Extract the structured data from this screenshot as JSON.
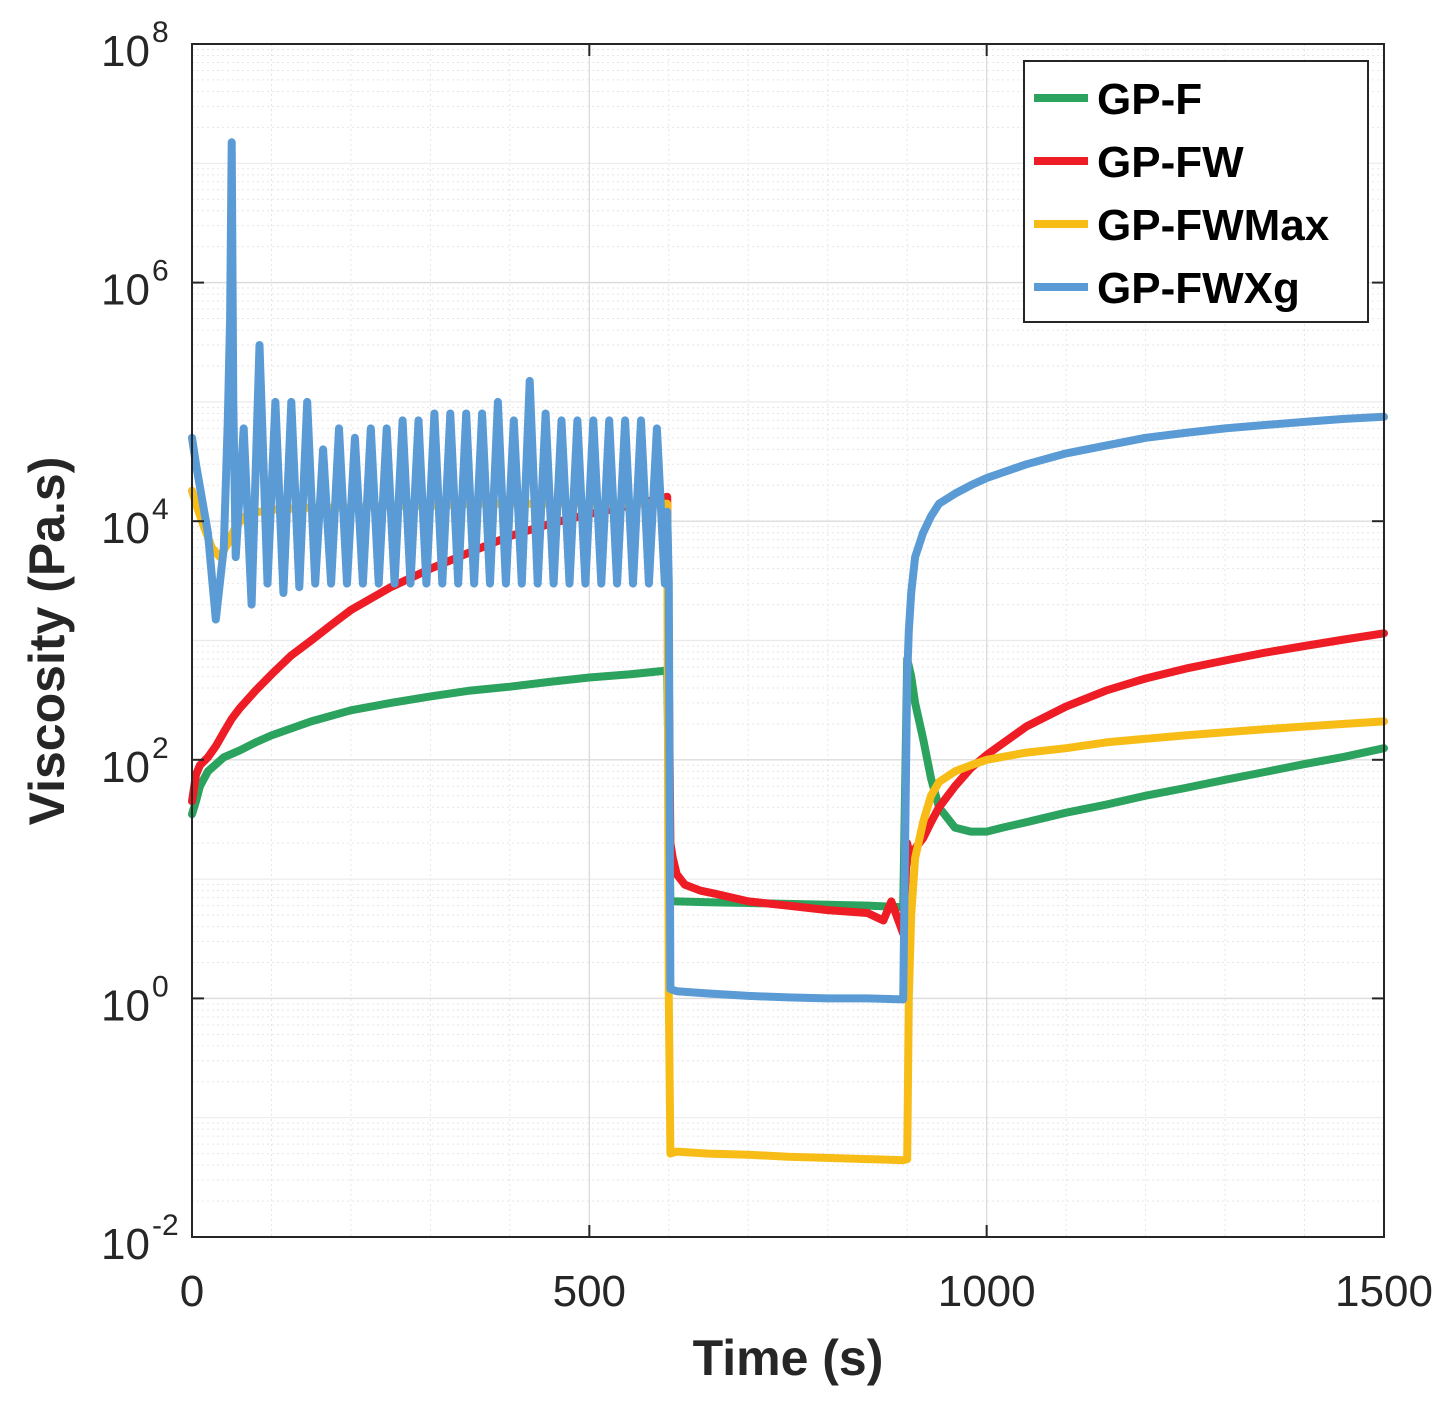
{
  "chart_data": {
    "type": "line",
    "title": "",
    "xlabel": "Time (s)",
    "ylabel": "Viscosity (Pa.s)",
    "xlim": [
      0,
      1500
    ],
    "ylim": [
      0.01,
      100000000
    ],
    "yscale": "log",
    "grid": true,
    "legend_position": "top-right",
    "x_ticks": [
      {
        "value": 0,
        "label": "0"
      },
      {
        "value": 500,
        "label": "500"
      },
      {
        "value": 1000,
        "label": "1000"
      },
      {
        "value": 1500,
        "label": "1500"
      }
    ],
    "y_ticks": [
      {
        "value": 0.01,
        "base": "10",
        "exp": "-2"
      },
      {
        "value": 1,
        "base": "10",
        "exp": "0"
      },
      {
        "value": 100,
        "base": "10",
        "exp": "2"
      },
      {
        "value": 10000,
        "base": "10",
        "exp": "4"
      },
      {
        "value": 1000000,
        "base": "10",
        "exp": "6"
      },
      {
        "value": 100000000,
        "base": "10",
        "exp": "8"
      }
    ],
    "series": [
      {
        "name": "GP-F",
        "color": "#2ca25f",
        "x": [
          0,
          5,
          10,
          20,
          40,
          60,
          80,
          100,
          150,
          200,
          250,
          300,
          350,
          400,
          450,
          500,
          550,
          598,
          602,
          610,
          650,
          700,
          750,
          800,
          850,
          895,
          900,
          905,
          910,
          920,
          930,
          940,
          960,
          980,
          1000,
          1020,
          1050,
          1100,
          1150,
          1200,
          1250,
          1300,
          1350,
          1400,
          1450,
          1500
        ],
        "values": [
          35,
          45,
          60,
          80,
          105,
          120,
          140,
          160,
          210,
          260,
          300,
          340,
          380,
          410,
          450,
          490,
          520,
          560,
          6.5,
          6.5,
          6.4,
          6.3,
          6.2,
          6.1,
          6.0,
          5.8,
          700,
          500,
          300,
          150,
          70,
          40,
          27,
          25,
          25,
          27,
          30,
          36,
          42,
          50,
          58,
          68,
          79,
          92,
          106,
          125
        ]
      },
      {
        "name": "GP-FW",
        "color": "#ee1c25",
        "x": [
          0,
          5,
          10,
          20,
          30,
          40,
          50,
          60,
          80,
          100,
          125,
          150,
          175,
          200,
          250,
          300,
          350,
          400,
          450,
          500,
          550,
          598,
          602,
          605,
          610,
          620,
          640,
          660,
          700,
          750,
          800,
          850,
          870,
          880,
          895,
          900,
          905,
          910,
          920,
          930,
          940,
          960,
          980,
          1000,
          1050,
          1100,
          1150,
          1200,
          1250,
          1300,
          1350,
          1400,
          1450,
          1500
        ],
        "values": [
          45,
          75,
          90,
          105,
          130,
          170,
          220,
          270,
          380,
          520,
          750,
          1000,
          1350,
          1800,
          2800,
          4000,
          5500,
          7500,
          9500,
          11500,
          13500,
          16000,
          20,
          15,
          11,
          9,
          8,
          7.5,
          6.5,
          6,
          5.5,
          5.2,
          4.5,
          6.5,
          3.5,
          20,
          14,
          18,
          22,
          30,
          40,
          60,
          85,
          110,
          190,
          280,
          380,
          480,
          580,
          680,
          790,
          900,
          1020,
          1150
        ]
      },
      {
        "name": "GP-FWMax",
        "color": "#f7bd16",
        "x": [
          0,
          5,
          15,
          25,
          35,
          45,
          55,
          70,
          100,
          150,
          200,
          250,
          300,
          350,
          400,
          450,
          500,
          550,
          598,
          600,
          602,
          610,
          650,
          700,
          750,
          800,
          850,
          895,
          900,
          902,
          905,
          910,
          920,
          930,
          940,
          960,
          980,
          1000,
          1050,
          1100,
          1150,
          1200,
          1250,
          1300,
          1350,
          1400,
          1450,
          1500
        ],
        "values": [
          18000,
          14000,
          9000,
          6000,
          5000,
          6500,
          9000,
          11500,
          12500,
          13000,
          13000,
          13500,
          13500,
          14000,
          14000,
          14000,
          14000,
          14000,
          14000,
          1,
          0.05,
          0.052,
          0.05,
          0.049,
          0.047,
          0.046,
          0.045,
          0.044,
          0.045,
          1,
          5,
          15,
          30,
          50,
          65,
          80,
          90,
          100,
          115,
          125,
          140,
          150,
          160,
          170,
          180,
          190,
          200,
          210
        ]
      },
      {
        "name": "GP-FWXg",
        "color": "#5b9bd5",
        "x": [
          0,
          5,
          20,
          30,
          40,
          45,
          48,
          50,
          52,
          55,
          65,
          75,
          85,
          95,
          105,
          115,
          125,
          135,
          145,
          155,
          165,
          175,
          185,
          195,
          205,
          215,
          225,
          235,
          245,
          255,
          265,
          275,
          285,
          295,
          305,
          315,
          325,
          335,
          345,
          355,
          365,
          375,
          385,
          395,
          405,
          415,
          425,
          435,
          445,
          455,
          465,
          475,
          485,
          495,
          505,
          515,
          525,
          535,
          545,
          555,
          565,
          575,
          585,
          595,
          598,
          600,
          602,
          610,
          650,
          700,
          750,
          800,
          850,
          895,
          900,
          902,
          905,
          910,
          920,
          930,
          940,
          960,
          980,
          1000,
          1050,
          1100,
          1150,
          1200,
          1250,
          1300,
          1350,
          1400,
          1450,
          1500
        ],
        "values": [
          50000,
          30000,
          8000,
          1500,
          6000,
          70000,
          500000,
          15000000,
          100000,
          5000,
          60000,
          2000,
          300000,
          3000,
          100000,
          2500,
          100000,
          2800,
          100000,
          3000,
          40000,
          3000,
          60000,
          3000,
          50000,
          3000,
          60000,
          3000,
          60000,
          3000,
          70000,
          3000,
          70000,
          3000,
          80000,
          3000,
          80000,
          3000,
          80000,
          3000,
          80000,
          3000,
          100000,
          3000,
          70000,
          3000,
          150000,
          3000,
          80000,
          3000,
          70000,
          3000,
          70000,
          3000,
          70000,
          3000,
          70000,
          3000,
          70000,
          3000,
          70000,
          3000,
          60000,
          3000,
          12000,
          3000,
          1.2,
          1.15,
          1.1,
          1.05,
          1.02,
          1.0,
          1.0,
          0.98,
          500,
          1200,
          2500,
          5000,
          8000,
          11000,
          14000,
          17000,
          20000,
          23000,
          30000,
          37000,
          43000,
          50000,
          55000,
          60000,
          64000,
          68000,
          72000,
          75000
        ]
      }
    ]
  }
}
